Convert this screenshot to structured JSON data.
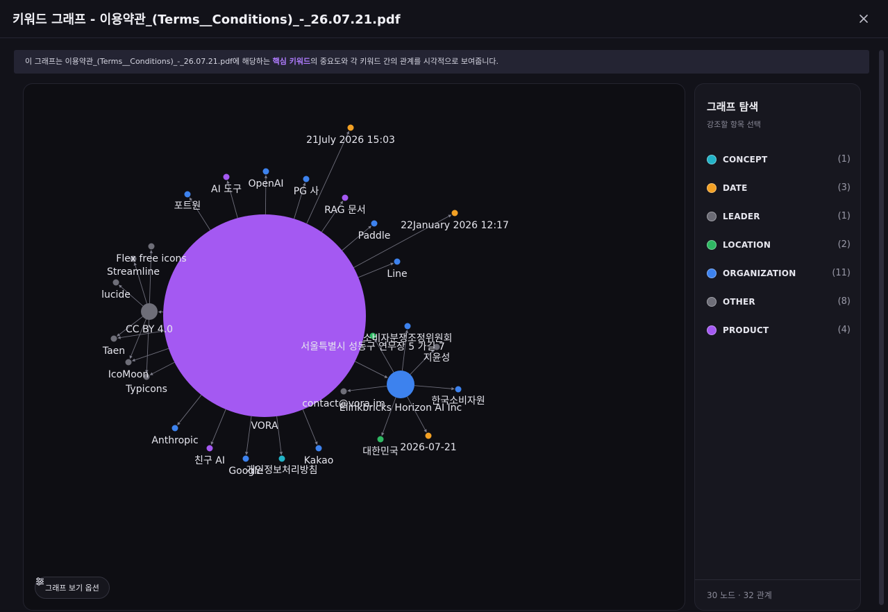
{
  "window": {
    "title": "키워드 그래프 - 이용약관_(Terms__Conditions)_-_26.07.21.pdf",
    "close_icon": "close-icon"
  },
  "banner": {
    "prefix": "이 그래프는 이용약관_(Terms__Conditions)_-_26.07.21.pdf에 해당하는 ",
    "highlight": "핵심 키워드",
    "suffix": "의 중요도와 각 키워드 간의 관계를 시각적으로 보여줍니다."
  },
  "graph": {
    "options_label": "그래프 보기 옵션",
    "options_icon": "sliders-icon",
    "node_labels": {
      "d1": "21July 2026 15:03",
      "ai_tool": "AI 도구",
      "openai": "OpenAI",
      "pg": "PG 사",
      "portone": "포트원",
      "rag": "RAG 문서",
      "d2": "22January 2026 12:17",
      "paddle": "Paddle",
      "flex": "Flex free icons",
      "streamline": "Streamline",
      "line": "Line",
      "lucide": "lucide",
      "ccby": "CC BY 4.0",
      "kca": "소비자분쟁조정위원회",
      "address": "서울특별시 성동구 연무장 5 가길 7",
      "jiyun": "지윤성",
      "taen": "Taen",
      "icomoon": "IcoMoon",
      "typicons": "Typicons",
      "contact": "contact@vora.im",
      "elinkbricks": "Elinkbricks Horizon AI Inc",
      "consumer": "한국소비자원",
      "vora": "VORA",
      "anthropic": "Anthropic",
      "d3": "2026-07-21",
      "korea": "대한민국",
      "friend": "친구 AI",
      "kakao": "Kakao",
      "google": "Google",
      "privacy": "개인정보처리방침"
    }
  },
  "side": {
    "title": "그래프 탐색",
    "subtitle": "강조할 항목 선택",
    "legend": [
      {
        "label": "CONCEPT",
        "count": "(1)",
        "color": "#22b3c7"
      },
      {
        "label": "DATE",
        "count": "(3)",
        "color": "#f2a024"
      },
      {
        "label": "LEADER",
        "count": "(1)",
        "color": "#6b6b75"
      },
      {
        "label": "LOCATION",
        "count": "(2)",
        "color": "#2fb863"
      },
      {
        "label": "ORGANIZATION",
        "count": "(11)",
        "color": "#3d82ee"
      },
      {
        "label": "OTHER",
        "count": "(8)",
        "color": "#6e6e78"
      },
      {
        "label": "PRODUCT",
        "count": "(4)",
        "color": "#a459f2"
      }
    ],
    "footer": "30 노드 · 32 관계"
  }
}
